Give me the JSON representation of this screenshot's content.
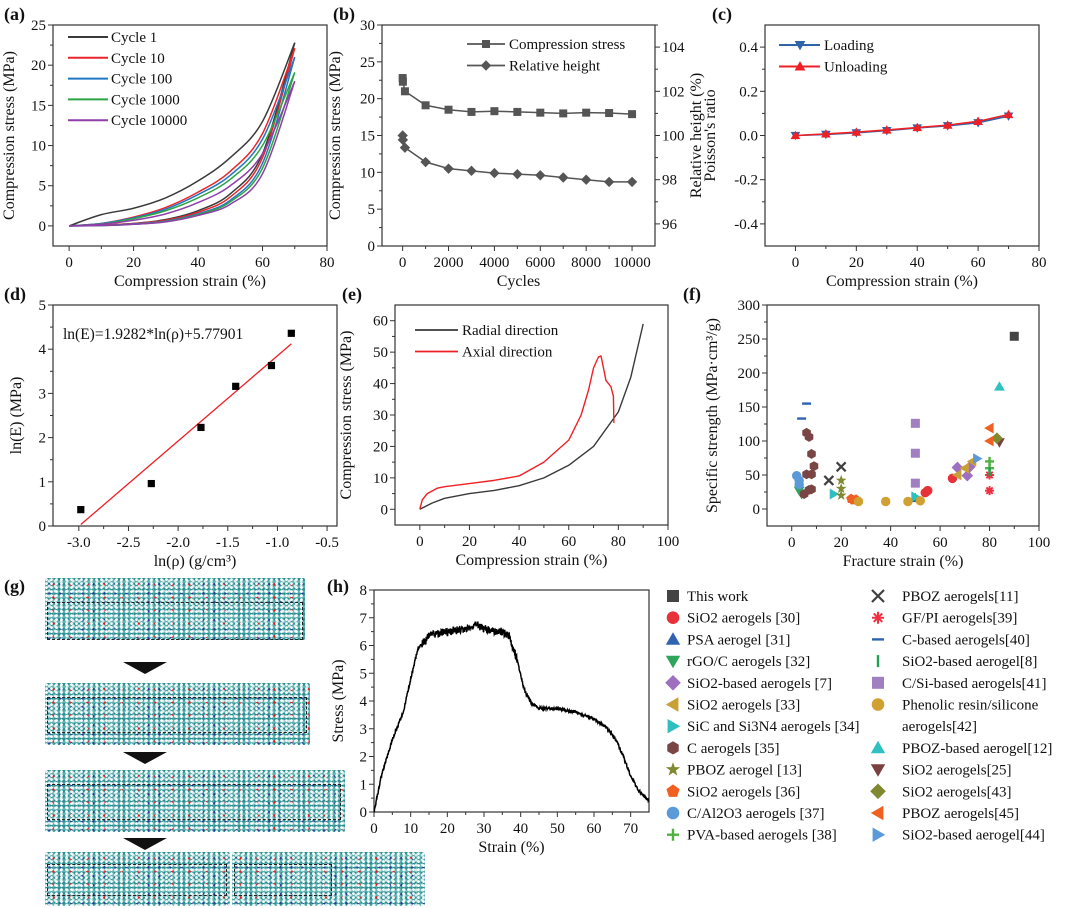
{
  "panel_labels": [
    "(a)",
    "(b)",
    "(c)",
    "(d)",
    "(e)",
    "(f)",
    "(g)",
    "(h)"
  ],
  "chart_data": [
    {
      "type": "line",
      "xlabel": "Compression strain (%)",
      "ylabel": "Compression stress (MPa)",
      "xlim": [
        -5,
        80
      ],
      "ylim": [
        -2.5,
        25
      ],
      "xticks": [
        "0",
        "20",
        "40",
        "60",
        "80"
      ],
      "yticks": [
        "0",
        "5",
        "10",
        "15",
        "20",
        "25"
      ],
      "legend_placement": "top-left",
      "x": [
        0,
        10,
        20,
        30,
        40,
        50,
        60,
        70
      ],
      "series": [
        {
          "name": "Cycle 1",
          "color": "#3a3a3a",
          "loading": [
            0,
            1.4,
            2.2,
            3.5,
            5.6,
            8.5,
            13,
            22.8
          ],
          "unloading": [
            0,
            0.1,
            0.3,
            0.8,
            1.9,
            4.0,
            9.0,
            22.8
          ]
        },
        {
          "name": "Cycle 10",
          "color": "#e8262c",
          "loading": [
            0,
            0.3,
            1.1,
            2.3,
            4.2,
            6.8,
            11.5,
            22.1
          ],
          "unloading": [
            0,
            0.1,
            0.3,
            0.7,
            1.7,
            3.6,
            8.5,
            22.1
          ]
        },
        {
          "name": "Cycle 100",
          "color": "#1f77c4",
          "loading": [
            0,
            0.3,
            1.0,
            2.1,
            3.9,
            6.3,
            10.8,
            21.0
          ],
          "unloading": [
            0,
            0.05,
            0.25,
            0.6,
            1.5,
            3.2,
            7.8,
            21.0
          ]
        },
        {
          "name": "Cycle 1000",
          "color": "#2ca444",
          "loading": [
            0,
            0.25,
            0.9,
            1.9,
            3.5,
            5.8,
            10.0,
            19.1
          ],
          "unloading": [
            0,
            0.05,
            0.2,
            0.55,
            1.4,
            3.0,
            7.2,
            19.1
          ]
        },
        {
          "name": "Cycle 10000",
          "color": "#8e3fa8",
          "loading": [
            0,
            0.2,
            0.7,
            1.5,
            2.9,
            5.0,
            9.0,
            18.0
          ],
          "unloading": [
            0,
            0.05,
            0.2,
            0.5,
            1.3,
            2.7,
            6.5,
            18.0
          ]
        }
      ]
    },
    {
      "type": "line",
      "xlabel": "Cycles",
      "ylabel": "Compression stress (MPa)",
      "ylabel_right": "Relative height (%)",
      "xlim": [
        -900,
        11000
      ],
      "ylim": [
        0,
        30
      ],
      "ylim_right": [
        95,
        105
      ],
      "xticks": [
        "0",
        "2000",
        "4000",
        "6000",
        "8000",
        "10000"
      ],
      "yticks": [
        "0",
        "5",
        "10",
        "15",
        "20",
        "25",
        "30"
      ],
      "yticks_right": [
        "96",
        "98",
        "100",
        "102",
        "104"
      ],
      "legend_placement": "top-right",
      "x": [
        1,
        10,
        100,
        1000,
        2000,
        3000,
        4000,
        5000,
        6000,
        7000,
        8000,
        9000,
        10000
      ],
      "series": [
        {
          "name": "Compression stress",
          "marker": "square",
          "axis": "left",
          "values": [
            22.8,
            22.3,
            21.0,
            19.1,
            18.5,
            18.2,
            18.3,
            18.2,
            18.1,
            18.0,
            18.1,
            18.05,
            17.9
          ]
        },
        {
          "name": "Relative height",
          "marker": "diamond",
          "axis": "right",
          "values": [
            100.0,
            99.8,
            99.45,
            98.8,
            98.5,
            98.4,
            98.3,
            98.25,
            98.2,
            98.1,
            98.0,
            97.9,
            97.9
          ]
        }
      ]
    },
    {
      "type": "line",
      "xlabel": "Compression strain (%)",
      "ylabel": "Poisson's ratio",
      "xlim": [
        -10,
        80
      ],
      "ylim": [
        -0.5,
        0.5
      ],
      "xticks": [
        "0",
        "20",
        "40",
        "60",
        "80"
      ],
      "yticks": [
        "-0.4",
        "-0.2",
        "0.0",
        "0.2",
        "0.4"
      ],
      "legend_placement": "top-left",
      "x": [
        0,
        10,
        20,
        30,
        40,
        50,
        60,
        70
      ],
      "series": [
        {
          "name": "Loading",
          "marker": "tri-down",
          "color": "#2f64a8",
          "values": [
            0,
            0.005,
            0.012,
            0.022,
            0.034,
            0.044,
            0.058,
            0.088
          ]
        },
        {
          "name": "Unloading",
          "marker": "tri-up",
          "color": "#ee2026",
          "values": [
            0,
            0.007,
            0.015,
            0.025,
            0.036,
            0.047,
            0.064,
            0.095
          ]
        }
      ]
    },
    {
      "type": "scatter",
      "xlabel": "ln(ρ) (g/cm³)",
      "ylabel": "ln(E) (MPa)",
      "xlim": [
        -3.26,
        -0.4
      ],
      "ylim": [
        0,
        5
      ],
      "xticks": [
        "-3.0",
        "-2.5",
        "-2.0",
        "-1.5",
        "-1.0",
        "-0.5"
      ],
      "yticks": [
        "0",
        "1",
        "2",
        "3",
        "4",
        "5"
      ],
      "annotation": "ln(E)=1.9282*ln(ρ)+5.77901",
      "fit": {
        "slope": 1.9282,
        "intercept": 5.77901,
        "color": "#ee2026"
      },
      "x": [
        -2.98,
        -2.27,
        -1.77,
        -1.42,
        -1.06,
        -0.86
      ],
      "y": [
        0.37,
        0.96,
        2.23,
        3.16,
        3.63,
        4.36
      ]
    },
    {
      "type": "line",
      "xlabel": "Compression strain (%)",
      "ylabel": "Compression stress (MPa)",
      "xlim": [
        -10,
        100
      ],
      "ylim": [
        -5,
        65
      ],
      "xticks": [
        "0",
        "20",
        "40",
        "60",
        "80",
        "100"
      ],
      "yticks": [
        "0",
        "10",
        "20",
        "30",
        "40",
        "50",
        "60"
      ],
      "legend_placement": "top-left",
      "series": [
        {
          "name": "Radial direction",
          "color": "#3a3a3a",
          "x": [
            0,
            5,
            10,
            20,
            30,
            40,
            50,
            60,
            70,
            80,
            85,
            90
          ],
          "y": [
            0,
            2,
            3.5,
            5,
            6,
            7.5,
            10,
            14,
            20,
            31,
            42,
            59
          ]
        },
        {
          "name": "Axial direction",
          "color": "#ee2026",
          "x": [
            0,
            1,
            3,
            7,
            10,
            20,
            30,
            40,
            50,
            60,
            65,
            68,
            70,
            72,
            73,
            74,
            75,
            77,
            78,
            78.2
          ],
          "y": [
            0,
            3,
            5,
            6.7,
            7.2,
            8.2,
            9.2,
            10.6,
            15,
            22,
            30,
            38,
            45,
            48.5,
            48.8,
            45,
            41,
            39,
            36,
            27.5
          ]
        }
      ]
    },
    {
      "type": "scatter",
      "xlabel": "Fracture strain (%)",
      "ylabel": "Specific strength (MPa·cm³/g)",
      "xlim": [
        -10,
        100
      ],
      "ylim": [
        -25,
        300
      ],
      "xticks": [
        "0",
        "20",
        "40",
        "60",
        "80",
        "100"
      ],
      "yticks": [
        "0",
        "50",
        "100",
        "150",
        "200",
        "250",
        "300"
      ],
      "legend_placement": "outside-bottom-right",
      "series": [
        {
          "name": "This work",
          "marker": "square",
          "color": "#444444",
          "points": [
            [
              90,
              254
            ]
          ]
        },
        {
          "name": "SiO2 aerogels [30]",
          "marker": "circle",
          "color": "#e8323a",
          "points": [
            [
              55,
              27
            ],
            [
              54,
              24
            ],
            [
              65,
              45
            ]
          ]
        },
        {
          "name": "PSA aerogel [31]",
          "marker": "tri-up",
          "color": "#2f63b0",
          "points": [
            [
              50,
              16
            ]
          ]
        },
        {
          "name": "rGO/C aerogels [32]",
          "marker": "tri-down",
          "color": "#2ea55a",
          "points": [
            [
              3,
              27
            ],
            [
              4,
              22
            ]
          ]
        },
        {
          "name": "SiO2-based aerogels [7]",
          "marker": "diamond",
          "color": "#a070c0",
          "points": [
            [
              67,
              61
            ],
            [
              71,
              49
            ],
            [
              72,
              62
            ]
          ]
        },
        {
          "name": "SiO2 aerogels [33]",
          "marker": "tri-left",
          "color": "#c8a035",
          "points": [
            [
              67,
              50
            ],
            [
              70,
              60
            ],
            [
              73,
              70
            ]
          ]
        },
        {
          "name": "SiC and Si3N4 aerogels [34]",
          "marker": "tri-right",
          "color": "#2fbfc0",
          "points": [
            [
              17,
              22
            ],
            [
              50,
              18
            ]
          ]
        },
        {
          "name": "C aerogels [35]",
          "marker": "hexagon",
          "color": "#7a4545",
          "points": [
            [
              6,
              112
            ],
            [
              7,
              106
            ],
            [
              8,
              81
            ],
            [
              6,
              51
            ],
            [
              9,
              63
            ],
            [
              8,
              51
            ],
            [
              5,
              22
            ],
            [
              8,
              29
            ],
            [
              7,
              28
            ]
          ]
        },
        {
          "name": "PBOZ aerogel [13]",
          "marker": "star",
          "color": "#808830",
          "points": [
            [
              20,
              42
            ],
            [
              20,
              30
            ],
            [
              20,
              20
            ]
          ]
        },
        {
          "name": "SiO2 aerogels [36]",
          "marker": "pentagon",
          "color": "#f06020",
          "points": [
            [
              24,
              15
            ],
            [
              25,
              13
            ],
            [
              26,
              14
            ]
          ]
        },
        {
          "name": "C/Al2O3 aerogels [37]",
          "marker": "circle",
          "color": "#5a9ad8",
          "points": [
            [
              2,
              49
            ],
            [
              3,
              42
            ],
            [
              3,
              36
            ]
          ]
        },
        {
          "name": "PVA-based aerogels [38]",
          "marker": "plus",
          "color": "#50b040",
          "points": [
            [
              80,
              70
            ],
            [
              80,
              60
            ]
          ]
        },
        {
          "name": "PBOZ aerogels[11]",
          "marker": "x",
          "color": "#404040",
          "points": [
            [
              15,
              42
            ],
            [
              20,
              62
            ]
          ]
        },
        {
          "name": "GF/PI aerogels[39]",
          "marker": "asterisk",
          "color": "#f03040",
          "points": [
            [
              80,
              50
            ],
            [
              80,
              27
            ]
          ]
        },
        {
          "name": "C-based aerogels[40]",
          "marker": "hdash",
          "color": "#2f63b0",
          "points": [
            [
              6,
              155
            ],
            [
              4,
              133
            ]
          ]
        },
        {
          "name": "SiO2-based aerogel[8]",
          "marker": "vdash",
          "color": "#20a050",
          "points": [
            [
              80,
              55
            ]
          ]
        },
        {
          "name": "C/Si-based aerogels[41]",
          "marker": "square",
          "color": "#a080c0",
          "points": [
            [
              50,
              126
            ],
            [
              50,
              82
            ],
            [
              50,
              38
            ]
          ]
        },
        {
          "name": "Phenolic resin/silicone aerogels[42]",
          "marker": "circle",
          "color": "#d0a030",
          "points": [
            [
              27,
              11
            ],
            [
              38,
              11
            ],
            [
              47,
              11
            ],
            [
              52,
              12
            ]
          ]
        },
        {
          "name": "PBOZ-based aerogel[12]",
          "marker": "tri-up",
          "color": "#30c0c0",
          "points": [
            [
              84,
              180
            ]
          ]
        },
        {
          "name": "SiO2 aerogels[25]",
          "marker": "tri-down",
          "color": "#7a4040",
          "points": [
            [
              84,
              98
            ]
          ]
        },
        {
          "name": "SiO2 aerogels[43]",
          "marker": "diamond",
          "color": "#808830",
          "points": [
            [
              83,
              104
            ]
          ]
        },
        {
          "name": "PBOZ aerogels[45]",
          "marker": "tri-left",
          "color": "#f06020",
          "points": [
            [
              80,
              119
            ],
            [
              80,
              100
            ]
          ]
        },
        {
          "name": "SiO2-based aerogel[44]",
          "marker": "tri-right",
          "color": "#5a9ad8",
          "points": [
            [
              75,
              74
            ]
          ]
        }
      ]
    },
    {
      "type": "line",
      "xlabel": "Strain (%)",
      "ylabel": "Stress (MPa)",
      "xlim": [
        0,
        75
      ],
      "ylim": [
        0,
        8
      ],
      "xticks": [
        "0",
        "10",
        "20",
        "30",
        "40",
        "50",
        "60",
        "70"
      ],
      "yticks": [
        "0",
        "1",
        "2",
        "3",
        "4",
        "5",
        "6",
        "7",
        "8"
      ],
      "series": [
        {
          "color": "#000000",
          "x": [
            0,
            2,
            5,
            8,
            10,
            12,
            15,
            20,
            25,
            28,
            30,
            35,
            37,
            39,
            41,
            43,
            45,
            50,
            55,
            60,
            63,
            66,
            68,
            70,
            72,
            75
          ],
          "y": [
            0,
            1.3,
            2.6,
            3.6,
            4.8,
            5.9,
            6.35,
            6.5,
            6.6,
            6.75,
            6.6,
            6.5,
            6.3,
            5.5,
            4.4,
            3.9,
            3.75,
            3.72,
            3.6,
            3.35,
            3.1,
            2.6,
            2.0,
            1.3,
            0.8,
            0.4
          ]
        }
      ]
    }
  ]
}
